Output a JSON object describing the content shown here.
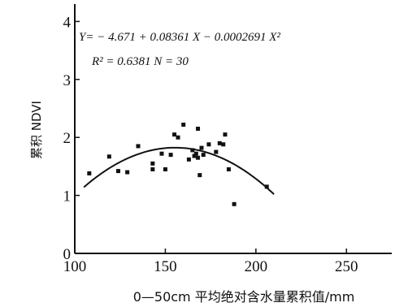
{
  "chart_data": {
    "type": "scatter",
    "title": "",
    "xlabel": "0—50cm 平均绝对含水量累积值/mm",
    "ylabel": "累积 NDVI",
    "xlim": [
      100,
      275
    ],
    "ylim": [
      0,
      4.3
    ],
    "x_ticks": [
      "100",
      "150",
      "200",
      "250"
    ],
    "y_ticks": [
      "0",
      "1",
      "2",
      "3",
      "4"
    ],
    "equation": "Y= − 4.671 + 0.08361 X − 0.0002691 X²",
    "stats": "R² = 0.6381    N = 30",
    "regression": {
      "a": -4.671,
      "b": 0.08361,
      "c": -0.0002691,
      "x_range": [
        105,
        210
      ]
    },
    "series": [
      {
        "points": [
          [
            108,
            1.38
          ],
          [
            119,
            1.67
          ],
          [
            124,
            1.42
          ],
          [
            129,
            1.4
          ],
          [
            135,
            1.85
          ],
          [
            143,
            1.45
          ],
          [
            143,
            1.55
          ],
          [
            148,
            1.72
          ],
          [
            150,
            1.45
          ],
          [
            153,
            1.7
          ],
          [
            155,
            2.05
          ],
          [
            157,
            2.0
          ],
          [
            160,
            2.22
          ],
          [
            163,
            1.62
          ],
          [
            165,
            1.78
          ],
          [
            166,
            1.68
          ],
          [
            167,
            1.72
          ],
          [
            168,
            1.65
          ],
          [
            168,
            2.15
          ],
          [
            169,
            1.35
          ],
          [
            170,
            1.82
          ],
          [
            171,
            1.7
          ],
          [
            174,
            1.88
          ],
          [
            178,
            1.75
          ],
          [
            180,
            1.9
          ],
          [
            182,
            1.88
          ],
          [
            183,
            2.05
          ],
          [
            185,
            1.45
          ],
          [
            188,
            0.85
          ],
          [
            206,
            1.15
          ]
        ]
      }
    ]
  }
}
